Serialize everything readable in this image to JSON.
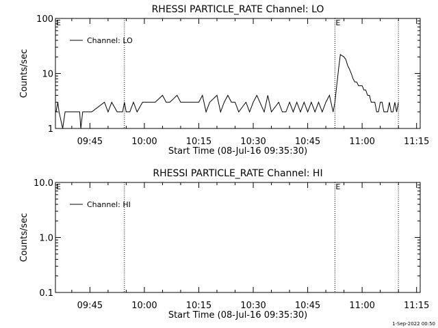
{
  "footer_text": "1-Sep-2022 00:50",
  "chart_data": [
    {
      "type": "line",
      "title": "RHESSI PARTICLE_RATE Channel: LO",
      "xlabel": "Start Time (08-Jul-16 09:35:30)",
      "ylabel": "Counts/sec",
      "yscale": "log",
      "ylim": [
        1,
        100
      ],
      "ytick_labels": [
        "1",
        "10",
        "100"
      ],
      "xlim": [
        "09:35:30",
        "11:16:00"
      ],
      "xtick_labels": [
        "09:45",
        "10:00",
        "10:15",
        "10:30",
        "10:45",
        "11:00",
        "11:15"
      ],
      "legend": "Channel: LO",
      "legend_position": "top-left",
      "event_markers": [
        {
          "time": "09:54:30",
          "label": ""
        },
        {
          "time": "10:52:30",
          "label": "E"
        },
        {
          "time": "11:10:00",
          "label": ""
        }
      ],
      "corner_label": "E",
      "series": [
        {
          "name": "Channel: LO",
          "x": [
            "09:35:40",
            "09:36:10",
            "09:36:30",
            "09:37:30",
            "09:38:10",
            "09:42:10",
            "09:42:30",
            "09:43:00",
            "09:45:30",
            "09:49:00",
            "09:50:00",
            "09:51:00",
            "09:52:30",
            "09:53:00",
            "09:54:00",
            "09:54:30",
            "09:55:00",
            "09:56:00",
            "09:57:00",
            "09:58:00",
            "09:59:30",
            "10:01:00",
            "10:02:00",
            "10:03:00",
            "10:05:00",
            "10:06:00",
            "10:07:00",
            "10:09:00",
            "10:10:00",
            "10:11:00",
            "10:13:00",
            "10:15:00",
            "10:16:00",
            "10:17:00",
            "10:18:00",
            "10:20:00",
            "10:21:00",
            "10:22:00",
            "10:23:00",
            "10:24:00",
            "10:25:00",
            "10:26:00",
            "10:28:00",
            "10:29:00",
            "10:30:00",
            "10:31:00",
            "10:33:00",
            "10:34:00",
            "10:35:00",
            "10:37:00",
            "10:38:00",
            "10:39:00",
            "10:40:00",
            "10:41:00",
            "10:42:00",
            "10:43:00",
            "10:44:00",
            "10:45:00",
            "10:46:00",
            "10:47:00",
            "10:48:00",
            "10:49:00",
            "10:50:00",
            "10:51:00",
            "10:52:00",
            "10:52:30",
            "10:53:00",
            "10:53:30",
            "10:54:00",
            "10:54:30",
            "10:55:00",
            "10:55:30",
            "10:56:00",
            "10:56:30",
            "10:57:00",
            "10:57:30",
            "10:58:00",
            "10:58:30",
            "10:59:00",
            "10:59:30",
            "11:00:00",
            "11:00:30",
            "11:01:00",
            "11:01:30",
            "11:02:00",
            "11:02:30",
            "11:03:00",
            "11:03:30",
            "11:04:00",
            "11:04:30",
            "11:05:00",
            "11:05:30",
            "11:06:00",
            "11:06:30",
            "11:07:00",
            "11:07:30",
            "11:08:00",
            "11:08:30",
            "11:09:00",
            "11:09:30",
            "11:10:00"
          ],
          "values": [
            2,
            3,
            2,
            1,
            2,
            2,
            1,
            2,
            2,
            3,
            2,
            3,
            2,
            2,
            2,
            3,
            2,
            2,
            3,
            2,
            3,
            3,
            3,
            3,
            4,
            3,
            3,
            4,
            3,
            3,
            3,
            3,
            4,
            2,
            3,
            4,
            2,
            3,
            4,
            3,
            3,
            2,
            3,
            2,
            3,
            4,
            2,
            4,
            2,
            3,
            2,
            2,
            3,
            2,
            3,
            2,
            3,
            2,
            3,
            2,
            3,
            2,
            3,
            4,
            2,
            3,
            6,
            12,
            22,
            21,
            20,
            18,
            14,
            12,
            10,
            8,
            7,
            7,
            6,
            6,
            6,
            5,
            5,
            4,
            4,
            3,
            3,
            3,
            2,
            2,
            3,
            3,
            2,
            2,
            2,
            3,
            2,
            2,
            3,
            2,
            3
          ]
        }
      ]
    },
    {
      "type": "line",
      "title": "RHESSI PARTICLE_RATE Channel: HI",
      "xlabel": "Start Time (08-Jul-16 09:35:30)",
      "ylabel": "Counts/sec",
      "yscale": "log",
      "ylim": [
        0.1,
        10
      ],
      "ytick_labels": [
        "0.1",
        "1.0",
        "10.0"
      ],
      "xlim": [
        "09:35:30",
        "11:16:00"
      ],
      "xtick_labels": [
        "09:45",
        "10:00",
        "10:15",
        "10:30",
        "10:45",
        "11:00",
        "11:15"
      ],
      "legend": "Channel: HI",
      "legend_position": "top-left",
      "event_markers": [
        {
          "time": "09:54:30",
          "label": ""
        },
        {
          "time": "10:52:30",
          "label": "E"
        },
        {
          "time": "11:10:00",
          "label": ""
        }
      ],
      "corner_label": "E",
      "series": [
        {
          "name": "Channel: HI",
          "x": [],
          "values": []
        }
      ]
    }
  ]
}
